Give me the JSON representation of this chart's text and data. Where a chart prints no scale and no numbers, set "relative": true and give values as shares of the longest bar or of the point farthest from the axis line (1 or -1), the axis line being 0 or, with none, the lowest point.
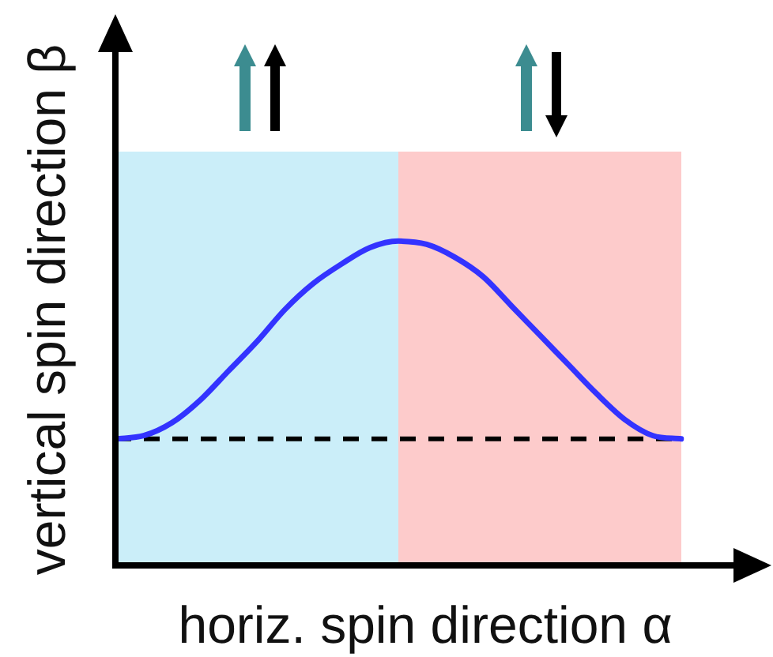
{
  "chart_data": {
    "type": "line",
    "relative": true,
    "xlabel": "horiz. spin direction α",
    "ylabel": "vertical spin direction β",
    "categories": [
      null,
      null,
      null,
      null,
      null,
      null,
      null,
      null,
      null,
      null,
      null,
      null,
      null,
      null,
      null,
      null,
      null,
      null,
      null,
      null,
      null
    ],
    "series": [
      {
        "color": "#3333ff",
        "values": [
          0.39,
          0.4,
          0.44,
          0.51,
          0.6,
          0.69,
          0.79,
          0.87,
          0.93,
          0.98,
          1.0,
          0.99,
          0.95,
          0.89,
          0.8,
          0.71,
          0.62,
          0.53,
          0.45,
          0.4,
          0.39
        ]
      }
    ],
    "marker": "none",
    "ref_lines": [
      {
        "axis": "y",
        "value": 0.39,
        "color": "#000000",
        "line_style": "dashed"
      }
    ]
  }
}
